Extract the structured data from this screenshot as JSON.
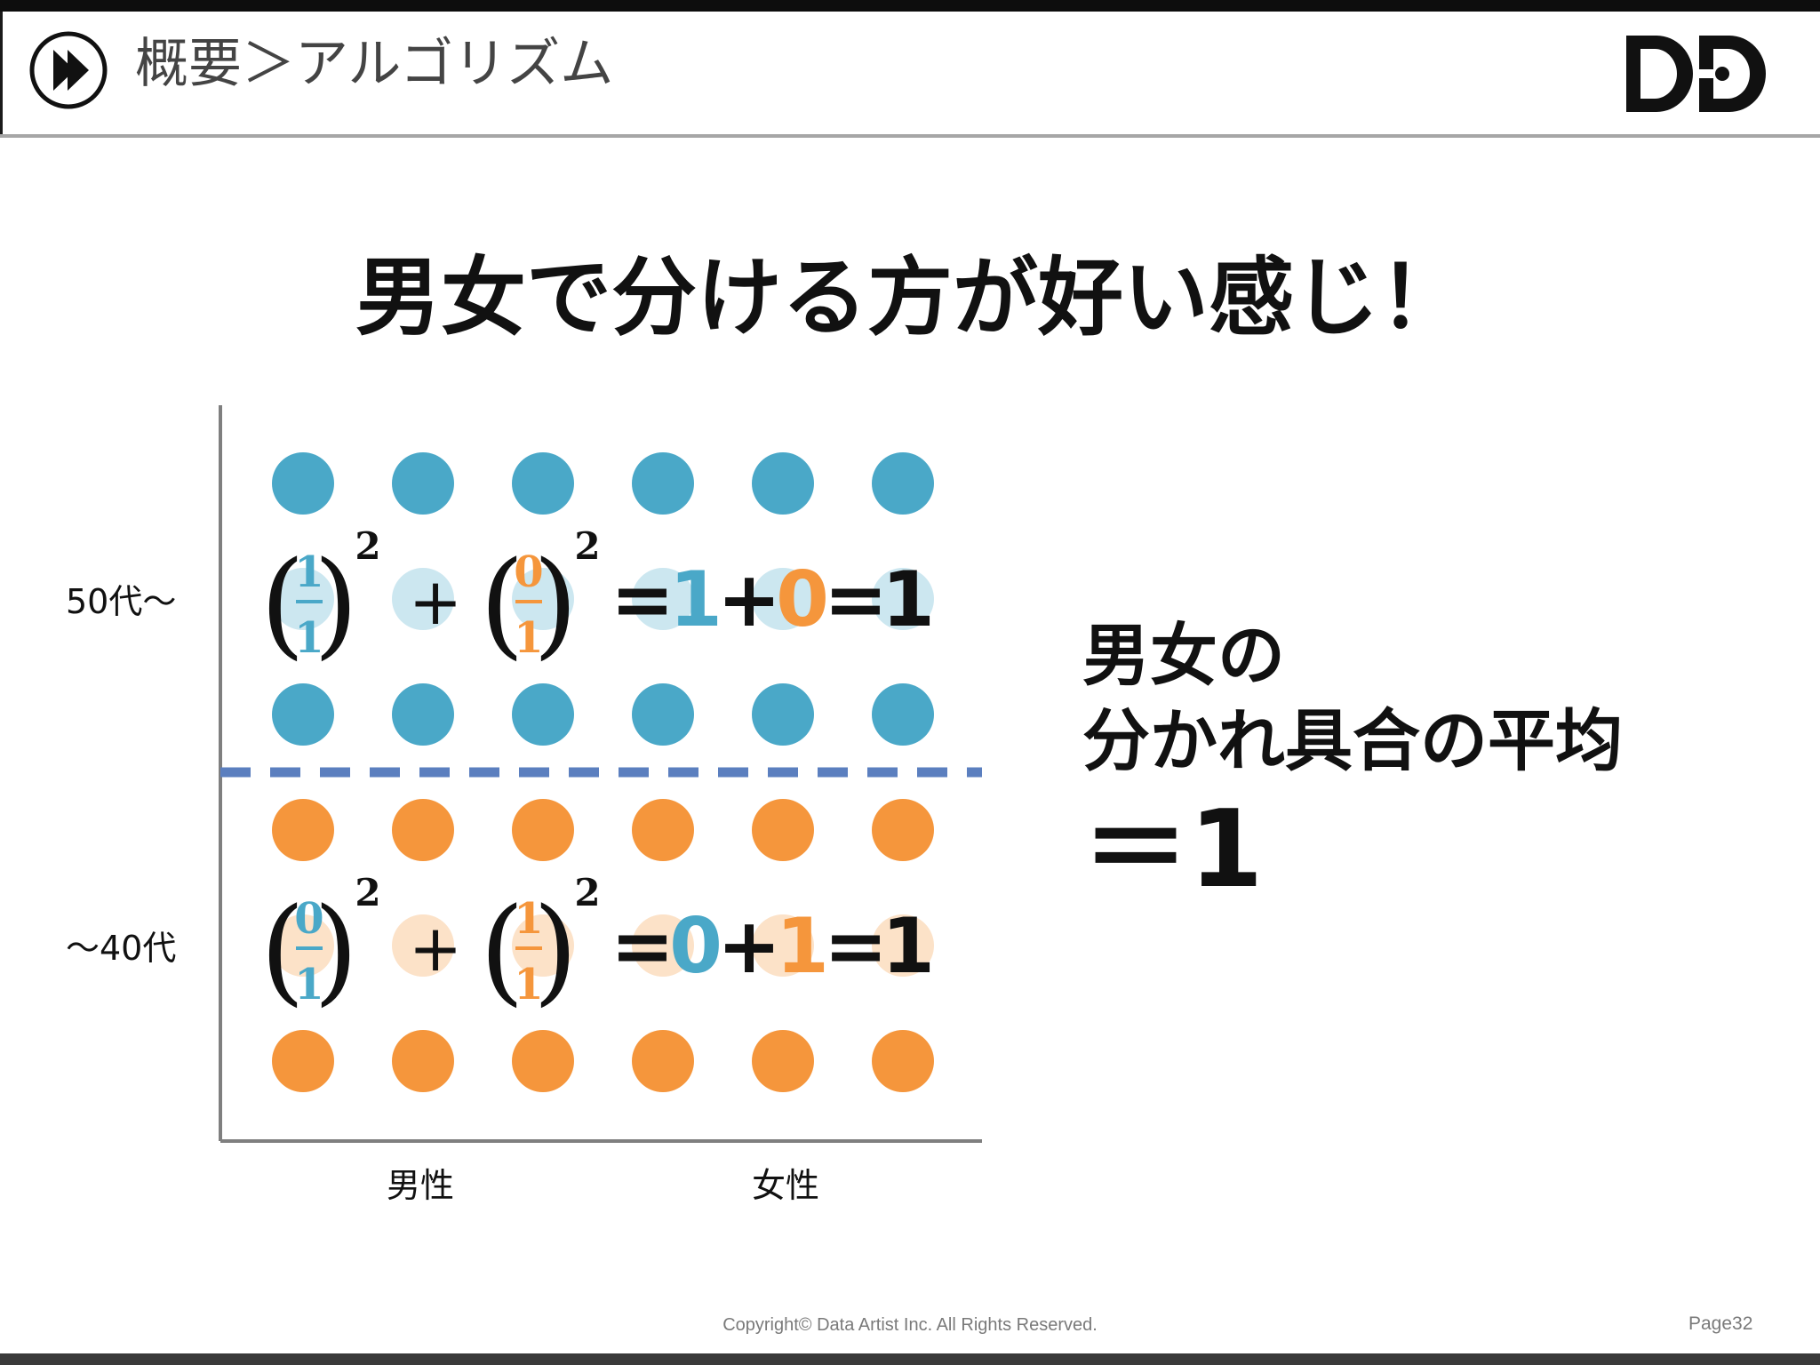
{
  "header": {
    "breadcrumb": "概要＞アルゴリズム",
    "logo_text": "DD"
  },
  "slide": {
    "headline": "男女で分ける方が好い感じ！"
  },
  "chart_data": {
    "type": "scatter",
    "x_categories": [
      "男性",
      "女性"
    ],
    "y_categories": [
      "50代〜",
      "〜40代"
    ],
    "columns_per_group": 3,
    "groups": [
      {
        "name": "50代〜",
        "color": "#4aa8c8",
        "rows": 3,
        "cols": 6
      },
      {
        "name": "〜40代",
        "color": "#f5963c",
        "rows": 3,
        "cols": 6
      }
    ],
    "split_line": "dashed",
    "split_color": "#5b7fbf",
    "formulas": [
      {
        "row": "50代〜",
        "left_num": "1",
        "left_den": "1",
        "left_color": "#4aa8c8",
        "right_num": "0",
        "right_den": "1",
        "right_color": "#f5963c",
        "exponent": "2",
        "plus": "+",
        "terms": [
          "1",
          "+",
          "0"
        ],
        "term_colors": [
          "#4aa8c8",
          "#111111",
          "#f5963c"
        ],
        "result": "1"
      },
      {
        "row": "〜40代",
        "left_num": "0",
        "left_den": "1",
        "left_color": "#4aa8c8",
        "right_num": "1",
        "right_den": "1",
        "right_color": "#f5963c",
        "exponent": "2",
        "plus": "+",
        "terms": [
          "0",
          "+",
          "1"
        ],
        "term_colors": [
          "#4aa8c8",
          "#111111",
          "#f5963c"
        ],
        "result": "1"
      }
    ]
  },
  "summary": {
    "line1": "男女の",
    "line2": "分かれ具合の平均",
    "result": "＝1"
  },
  "footer": {
    "copyright": "Copyright© Data Artist Inc.   All Rights Reserved.",
    "page": "Page32"
  },
  "colors": {
    "blue": "#4aa8c8",
    "orange": "#f5963c",
    "dashed": "#5b7fbf"
  }
}
